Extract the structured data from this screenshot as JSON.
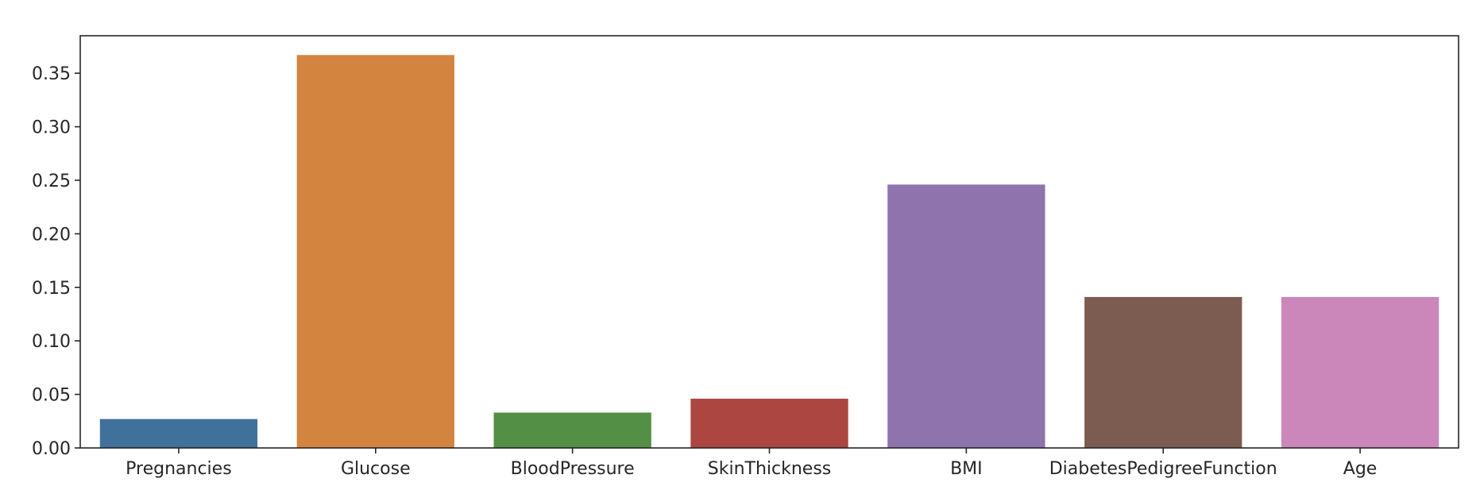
{
  "chart_data": {
    "type": "bar",
    "title": "",
    "xlabel": "",
    "ylabel": "",
    "categories": [
      "Pregnancies",
      "Glucose",
      "BloodPressure",
      "SkinThickness",
      "BMI",
      "DiabetesPedigreeFunction",
      "Age"
    ],
    "values": [
      0.027,
      0.367,
      0.033,
      0.046,
      0.246,
      0.141,
      0.141
    ],
    "colors": [
      "#3f719b",
      "#d3843f",
      "#548f46",
      "#ac4641",
      "#8e73ac",
      "#7c5c51",
      "#cb87b9"
    ],
    "ylim": [
      0,
      0.385
    ],
    "yticks": [
      0.0,
      0.05,
      0.1,
      0.15,
      0.2,
      0.25,
      0.3,
      0.35
    ],
    "ytick_labels": [
      "0.00",
      "0.05",
      "0.10",
      "0.15",
      "0.20",
      "0.25",
      "0.30",
      "0.35"
    ],
    "grid": false,
    "legend": "none"
  }
}
